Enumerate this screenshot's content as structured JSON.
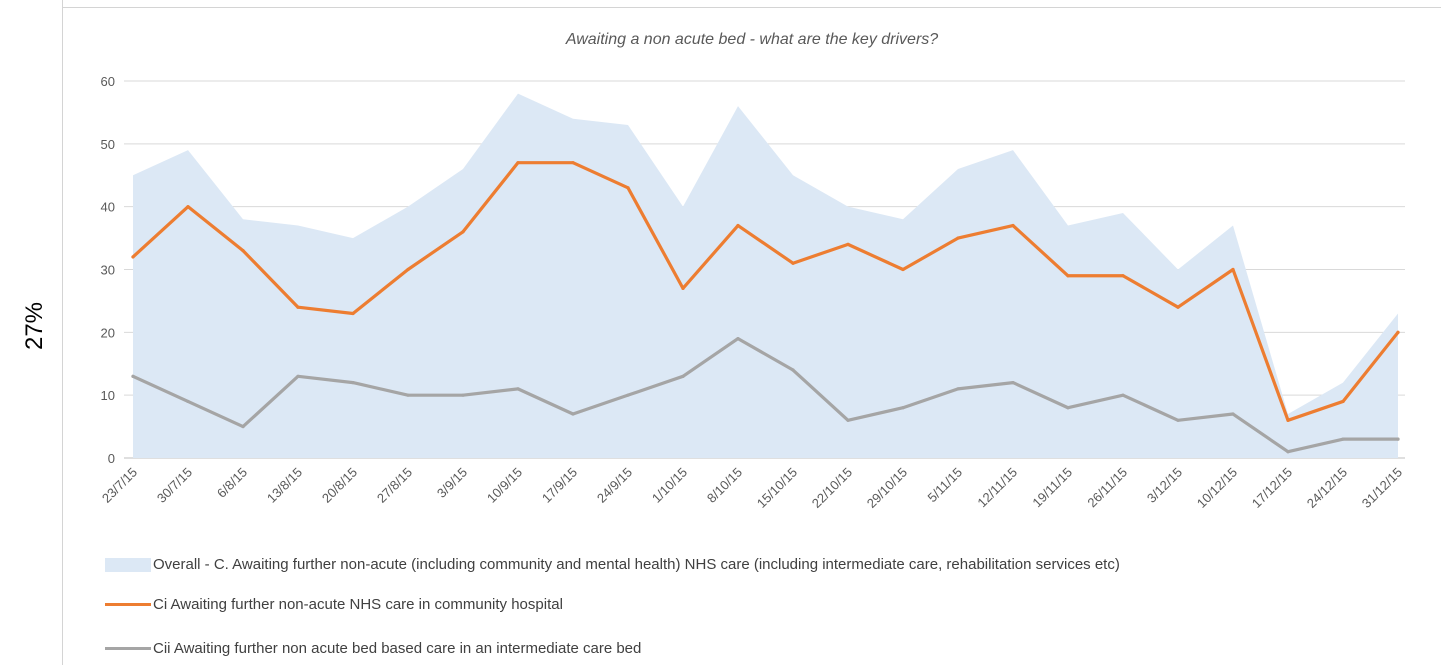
{
  "side_label": "27%",
  "chart_data": {
    "type": "line",
    "title": "Awaiting a non acute bed - what are the key drivers?",
    "xlabel": "",
    "ylabel": "",
    "ylim": [
      0,
      60
    ],
    "yticks": [
      0,
      10,
      20,
      30,
      40,
      50,
      60
    ],
    "grid": true,
    "legend_position": "bottom",
    "categories": [
      "23/7/15",
      "30/7/15",
      "6/8/15",
      "13/8/15",
      "20/8/15",
      "27/8/15",
      "3/9/15",
      "10/9/15",
      "17/9/15",
      "24/9/15",
      "1/10/15",
      "8/10/15",
      "15/10/15",
      "22/10/15",
      "29/10/15",
      "5/11/15",
      "12/11/15",
      "19/11/15",
      "26/11/15",
      "3/12/15",
      "10/12/15",
      "17/12/15",
      "24/12/15",
      "31/12/15"
    ],
    "series": [
      {
        "name": "Overall - C. Awaiting further non-acute (including community and mental health) NHS care (including intermediate care, rehabilitation services etc)",
        "style": "area",
        "color": "#dce8f5",
        "values": [
          45,
          49,
          38,
          37,
          35,
          40,
          46,
          58,
          54,
          53,
          40,
          56,
          45,
          40,
          38,
          46,
          49,
          37,
          39,
          30,
          37,
          7,
          12,
          23
        ]
      },
      {
        "name": "Ci  Awaiting further non-acute NHS care in community hospital",
        "style": "line",
        "color": "#ed7d31",
        "values": [
          32,
          40,
          33,
          24,
          23,
          30,
          36,
          47,
          47,
          43,
          27,
          37,
          31,
          34,
          30,
          35,
          37,
          29,
          29,
          24,
          30,
          6,
          9,
          20
        ]
      },
      {
        "name": "Cii  Awaiting further non acute bed based care in an intermediate care bed",
        "style": "line",
        "color": "#a5a5a5",
        "values": [
          13,
          9,
          5,
          13,
          12,
          10,
          10,
          11,
          7,
          10,
          13,
          19,
          14,
          6,
          8,
          11,
          12,
          8,
          10,
          6,
          7,
          1,
          3,
          3
        ]
      }
    ]
  }
}
